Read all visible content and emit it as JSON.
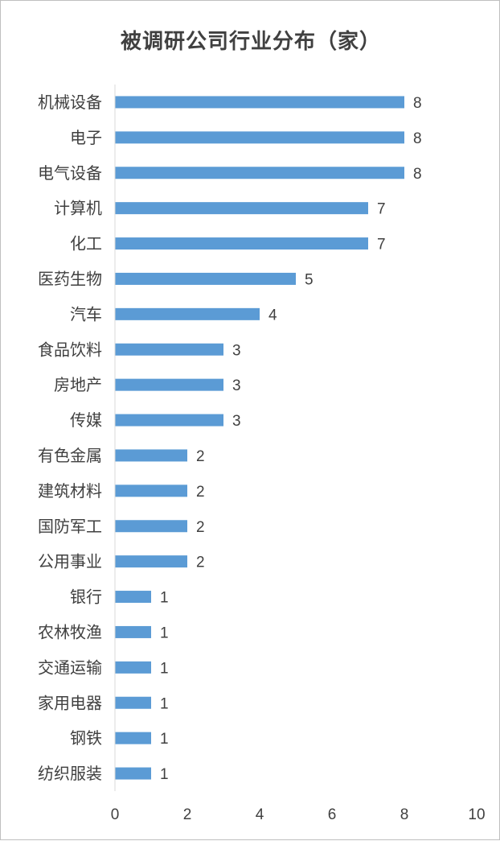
{
  "chart_data": {
    "type": "bar",
    "orientation": "horizontal",
    "title": "被调研公司行业分布（家）",
    "categories": [
      "机械设备",
      "电子",
      "电气设备",
      "计算机",
      "化工",
      "医药生物",
      "汽车",
      "食品饮料",
      "房地产",
      "传媒",
      "有色金属",
      "建筑材料",
      "国防军工",
      "公用事业",
      "银行",
      "农林牧渔",
      "交通运输",
      "家用电器",
      "钢铁",
      "纺织服装"
    ],
    "values": [
      8,
      8,
      8,
      7,
      7,
      5,
      4,
      3,
      3,
      3,
      2,
      2,
      2,
      2,
      1,
      1,
      1,
      1,
      1,
      1
    ],
    "xlim": [
      0,
      10
    ],
    "xticks": [
      "0",
      "2",
      "4",
      "6",
      "8",
      "10"
    ],
    "grid": false,
    "legend": "none",
    "bar_color": "#5b9bd5",
    "axis_color": "#d9d9d9"
  }
}
